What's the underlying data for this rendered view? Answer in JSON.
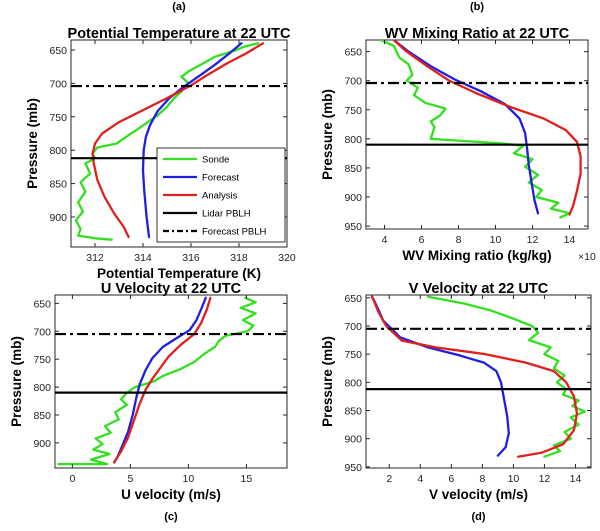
{
  "colors": {
    "sonde": "#33e01f",
    "forecast": "#1f1fe0",
    "analysis": "#e01f1f",
    "lidar_pblh": "#000000",
    "forecast_pblh": "#000000",
    "axes": "#262626"
  },
  "legend": {
    "entries": [
      {
        "key": "sonde",
        "label": "Sonde",
        "style": "solid"
      },
      {
        "key": "forecast",
        "label": "Forecast",
        "style": "solid"
      },
      {
        "key": "analysis",
        "label": "Analysis",
        "style": "solid"
      },
      {
        "key": "lidar_pblh",
        "label": "Lidar PBLH",
        "style": "solid"
      },
      {
        "key": "forecast_pblh",
        "label": "Forecast PBLH",
        "style": "dashdot"
      }
    ]
  },
  "chart_data": [
    {
      "letter": "(a)",
      "type": "line",
      "title": "Potential Temperature at 22 UTC",
      "xlabel": "Potential Temperature (K)",
      "ylabel": "Pressure (mb)",
      "xlim": [
        311,
        320
      ],
      "ylim": [
        635,
        945
      ],
      "y_reversed": true,
      "xticks": [
        312,
        314,
        316,
        318,
        320
      ],
      "yticks": [
        650,
        700,
        750,
        800,
        850,
        900
      ],
      "has_legend": true,
      "hlines": [
        {
          "key": "lidar_pblh",
          "y": 812
        },
        {
          "key": "forecast_pblh",
          "y": 704
        }
      ],
      "series": [
        {
          "key": "sonde",
          "points": [
            [
              318.8,
              640
            ],
            [
              318.2,
              645
            ],
            [
              317.9,
              650
            ],
            [
              317.0,
              660
            ],
            [
              316.4,
              672
            ],
            [
              315.9,
              682
            ],
            [
              315.6,
              690
            ],
            [
              315.9,
              700
            ],
            [
              315.6,
              712
            ],
            [
              315.3,
              722
            ],
            [
              315.0,
              735
            ],
            [
              314.6,
              748
            ],
            [
              314.2,
              758
            ],
            [
              313.8,
              768
            ],
            [
              313.3,
              780
            ],
            [
              312.9,
              790
            ],
            [
              312.1,
              796
            ],
            [
              311.9,
              805
            ],
            [
              312.0,
              812
            ],
            [
              311.6,
              820
            ],
            [
              311.8,
              835
            ],
            [
              311.4,
              848
            ],
            [
              311.6,
              862
            ],
            [
              311.3,
              878
            ],
            [
              311.5,
              892
            ],
            [
              311.2,
              905
            ],
            [
              311.4,
              918
            ],
            [
              311.3,
              928
            ],
            [
              312.0,
              932
            ],
            [
              312.7,
              934
            ]
          ]
        },
        {
          "key": "forecast",
          "points": [
            [
              318.1,
              640
            ],
            [
              317.6,
              655
            ],
            [
              317.0,
              672
            ],
            [
              316.3,
              690
            ],
            [
              315.7,
              705
            ],
            [
              315.1,
              722
            ],
            [
              314.6,
              742
            ],
            [
              314.3,
              762
            ],
            [
              314.12,
              780
            ],
            [
              314.03,
              800
            ],
            [
              314.0,
              830
            ],
            [
              314.05,
              860
            ],
            [
              314.15,
              900
            ],
            [
              314.25,
              930
            ]
          ]
        },
        {
          "key": "analysis",
          "points": [
            [
              319.0,
              640
            ],
            [
              318.3,
              655
            ],
            [
              317.5,
              670
            ],
            [
              316.7,
              687
            ],
            [
              316.0,
              703
            ],
            [
              315.0,
              722
            ],
            [
              314.0,
              740
            ],
            [
              313.0,
              758
            ],
            [
              312.3,
              775
            ],
            [
              312.0,
              790
            ],
            [
              311.9,
              805
            ],
            [
              311.95,
              820
            ],
            [
              312.1,
              845
            ],
            [
              312.4,
              870
            ],
            [
              312.8,
              895
            ],
            [
              313.2,
              915
            ],
            [
              313.4,
              930
            ]
          ]
        }
      ]
    },
    {
      "letter": "(b)",
      "type": "line",
      "title": "WV Mixing Ratio at 22 UTC",
      "xlabel": "WV Mixing ratio (kg/kg)",
      "xlabel_multiplier": "×10",
      "xlabel_multiplier_exp": "-3",
      "ylabel": "Pressure (mb)",
      "xlim": [
        3,
        15
      ],
      "ylim": [
        630,
        955
      ],
      "y_reversed": true,
      "xticks": [
        4,
        6,
        8,
        10,
        12,
        14
      ],
      "yticks": [
        650,
        700,
        750,
        800,
        850,
        900,
        950
      ],
      "has_legend": false,
      "hlines": [
        {
          "key": "lidar_pblh",
          "y": 810
        },
        {
          "key": "forecast_pblh",
          "y": 704
        }
      ],
      "series": [
        {
          "key": "sonde",
          "points": [
            [
              3.8,
              630
            ],
            [
              4.5,
              640
            ],
            [
              4.8,
              660
            ],
            [
              5.3,
              672
            ],
            [
              5.5,
              690
            ],
            [
              5.2,
              700
            ],
            [
              5.8,
              712
            ],
            [
              5.6,
              725
            ],
            [
              6.2,
              738
            ],
            [
              7.3,
              748
            ],
            [
              7.0,
              760
            ],
            [
              6.5,
              770
            ],
            [
              6.7,
              780
            ],
            [
              6.5,
              800
            ],
            [
              10.4,
              808
            ],
            [
              11.5,
              812
            ],
            [
              11.0,
              825
            ],
            [
              12.0,
              835
            ],
            [
              11.6,
              848
            ],
            [
              12.3,
              862
            ],
            [
              11.8,
              875
            ],
            [
              12.5,
              888
            ],
            [
              12.2,
              900
            ],
            [
              13.4,
              910
            ],
            [
              13.0,
              920
            ],
            [
              14.0,
              928
            ],
            [
              13.5,
              935
            ]
          ]
        },
        {
          "key": "forecast",
          "points": [
            [
              4.5,
              630
            ],
            [
              5.3,
              650
            ],
            [
              6.5,
              675
            ],
            [
              7.8,
              698
            ],
            [
              9.2,
              718
            ],
            [
              10.5,
              740
            ],
            [
              11.3,
              765
            ],
            [
              11.6,
              790
            ],
            [
              11.7,
              815
            ],
            [
              11.8,
              845
            ],
            [
              11.95,
              875
            ],
            [
              12.1,
              905
            ],
            [
              12.3,
              928
            ]
          ]
        },
        {
          "key": "analysis",
          "points": [
            [
              4.5,
              630
            ],
            [
              5.2,
              650
            ],
            [
              6.3,
              675
            ],
            [
              7.5,
              700
            ],
            [
              9.0,
              722
            ],
            [
              10.8,
              745
            ],
            [
              12.6,
              765
            ],
            [
              13.8,
              785
            ],
            [
              14.4,
              805
            ],
            [
              14.6,
              830
            ],
            [
              14.6,
              860
            ],
            [
              14.4,
              890
            ],
            [
              14.2,
              915
            ],
            [
              14.0,
              930
            ]
          ]
        }
      ]
    },
    {
      "letter": "(c)",
      "type": "line",
      "title": "U Velocity at 22 UTC",
      "xlabel": "U velocity (m/s)",
      "ylabel": "Pressure (mb)",
      "xlim": [
        -1.5,
        18.5
      ],
      "ylim": [
        635,
        945
      ],
      "y_reversed": true,
      "xticks": [
        0,
        5,
        10,
        15
      ],
      "yticks": [
        650,
        700,
        750,
        800,
        850,
        900
      ],
      "has_legend": false,
      "hlines": [
        {
          "key": "lidar_pblh",
          "y": 810
        },
        {
          "key": "forecast_pblh",
          "y": 705
        }
      ],
      "series": [
        {
          "key": "sonde",
          "points": [
            [
              14.9,
              640
            ],
            [
              15.8,
              648
            ],
            [
              14.5,
              658
            ],
            [
              15.8,
              668
            ],
            [
              14.7,
              680
            ],
            [
              15.6,
              690
            ],
            [
              15.1,
              700
            ],
            [
              13.2,
              708
            ],
            [
              12.6,
              718
            ],
            [
              12.3,
              728
            ],
            [
              11.4,
              740
            ],
            [
              10.5,
              755
            ],
            [
              9.3,
              768
            ],
            [
              7.8,
              780
            ],
            [
              7.0,
              790
            ],
            [
              5.4,
              800
            ],
            [
              4.6,
              812
            ],
            [
              4.2,
              822
            ],
            [
              4.7,
              832
            ],
            [
              3.7,
              845
            ],
            [
              4.0,
              858
            ],
            [
              2.8,
              870
            ],
            [
              3.3,
              882
            ],
            [
              2.0,
              892
            ],
            [
              2.6,
              902
            ],
            [
              1.8,
              912
            ],
            [
              3.2,
              920
            ],
            [
              1.6,
              930
            ],
            [
              3.0,
              938
            ],
            [
              -1.2,
              938
            ]
          ]
        },
        {
          "key": "forecast",
          "points": [
            [
              11.5,
              640
            ],
            [
              11.1,
              660
            ],
            [
              10.7,
              680
            ],
            [
              10.1,
              698
            ],
            [
              9.0,
              712
            ],
            [
              7.8,
              728
            ],
            [
              6.9,
              748
            ],
            [
              6.3,
              770
            ],
            [
              5.8,
              795
            ],
            [
              5.5,
              820
            ],
            [
              5.2,
              850
            ],
            [
              4.8,
              880
            ],
            [
              4.3,
              905
            ],
            [
              3.9,
              925
            ],
            [
              3.6,
              935
            ]
          ]
        },
        {
          "key": "analysis",
          "points": [
            [
              11.9,
              640
            ],
            [
              11.6,
              660
            ],
            [
              11.1,
              685
            ],
            [
              10.5,
              705
            ],
            [
              9.3,
              725
            ],
            [
              8.3,
              745
            ],
            [
              7.6,
              765
            ],
            [
              6.9,
              785
            ],
            [
              6.3,
              805
            ],
            [
              5.8,
              830
            ],
            [
              5.3,
              860
            ],
            [
              4.8,
              890
            ],
            [
              4.2,
              915
            ],
            [
              3.6,
              935
            ]
          ]
        }
      ]
    },
    {
      "letter": "(d)",
      "type": "line",
      "title": "V Velocity at 22 UTC",
      "xlabel": "V velocity (m/s)",
      "ylabel": "Pressure (mb)",
      "xlim": [
        0.5,
        15
      ],
      "ylim": [
        645,
        952
      ],
      "y_reversed": true,
      "xticks": [
        2,
        4,
        6,
        8,
        10,
        12,
        14
      ],
      "yticks": [
        650,
        700,
        750,
        800,
        850,
        900,
        950
      ],
      "has_legend": false,
      "hlines": [
        {
          "key": "lidar_pblh",
          "y": 812
        },
        {
          "key": "forecast_pblh",
          "y": 705
        }
      ],
      "series": [
        {
          "key": "sonde",
          "points": [
            [
              4.5,
              648
            ],
            [
              6.8,
              660
            ],
            [
              8.5,
              672
            ],
            [
              9.8,
              685
            ],
            [
              11.2,
              700
            ],
            [
              11.6,
              712
            ],
            [
              11.0,
              725
            ],
            [
              12.4,
              738
            ],
            [
              12.0,
              750
            ],
            [
              12.9,
              762
            ],
            [
              12.6,
              775
            ],
            [
              13.3,
              788
            ],
            [
              12.8,
              800
            ],
            [
              13.4,
              812
            ],
            [
              13.2,
              822
            ],
            [
              14.2,
              832
            ],
            [
              13.8,
              842
            ],
            [
              14.6,
              852
            ],
            [
              13.7,
              862
            ],
            [
              14.2,
              875
            ],
            [
              13.3,
              888
            ],
            [
              13.7,
              900
            ],
            [
              12.6,
              912
            ],
            [
              13.0,
              922
            ],
            [
              12.0,
              932
            ]
          ]
        },
        {
          "key": "forecast",
          "points": [
            [
              0.9,
              648
            ],
            [
              1.2,
              665
            ],
            [
              1.6,
              690
            ],
            [
              2.7,
              720
            ],
            [
              4.5,
              738
            ],
            [
              6.5,
              752
            ],
            [
              8.1,
              765
            ],
            [
              8.9,
              780
            ],
            [
              9.2,
              800
            ],
            [
              9.4,
              830
            ],
            [
              9.6,
              860
            ],
            [
              9.7,
              890
            ],
            [
              9.5,
              915
            ],
            [
              9.0,
              930
            ]
          ]
        },
        {
          "key": "analysis",
          "points": [
            [
              0.9,
              648
            ],
            [
              1.3,
              675
            ],
            [
              1.8,
              700
            ],
            [
              2.8,
              726
            ],
            [
              5.0,
              738
            ],
            [
              8.2,
              750
            ],
            [
              10.8,
              765
            ],
            [
              12.6,
              780
            ],
            [
              13.4,
              800
            ],
            [
              13.9,
              825
            ],
            [
              14.1,
              855
            ],
            [
              13.9,
              885
            ],
            [
              13.2,
              910
            ],
            [
              11.8,
              925
            ],
            [
              10.3,
              932
            ]
          ]
        }
      ]
    }
  ]
}
